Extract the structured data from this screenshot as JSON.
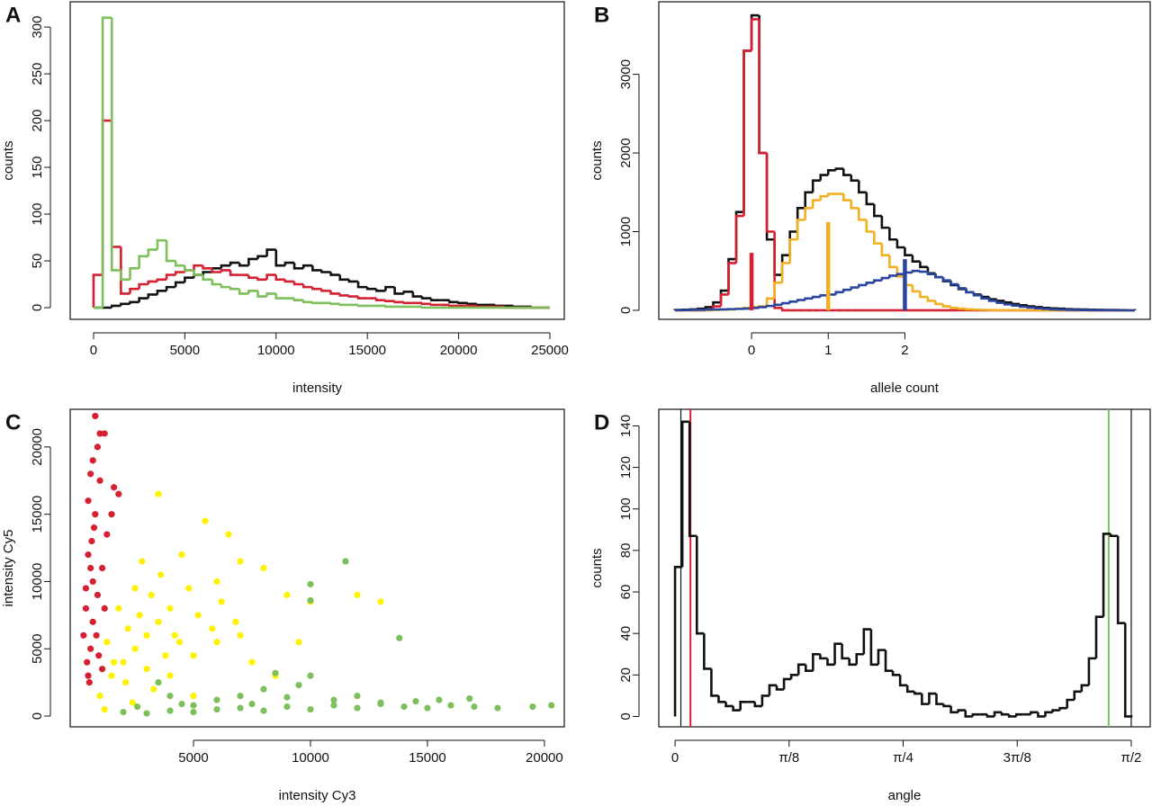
{
  "chart_data": [
    {
      "type": "histogram",
      "panel": "A",
      "xlabel": "intensity",
      "ylabel": "counts",
      "xlim": [
        -1280,
        25790
      ],
      "ylim": [
        -12.5,
        327
      ],
      "xticks": [
        0,
        5000,
        10000,
        15000,
        20000,
        25000
      ],
      "yticks": [
        0,
        50,
        100,
        150,
        200,
        250,
        300
      ],
      "bins": [
        0,
        500,
        1000,
        1500,
        2000,
        2500,
        3000,
        3500,
        4000,
        4500,
        5000,
        5500,
        6000,
        6500,
        7000,
        7500,
        8000,
        8500,
        9000,
        9500,
        10000,
        10500,
        11000,
        11500,
        12000,
        12500,
        13000,
        13500,
        14000,
        14500,
        15000,
        15500,
        16000,
        16500,
        17000,
        17500,
        18000,
        18500,
        19000,
        19500,
        20000,
        20500,
        21000,
        21500,
        22000,
        22500,
        23000,
        23500,
        24000,
        24500,
        25000
      ],
      "series": [
        {
          "color": "#111111",
          "values": [
            0,
            0,
            2,
            4,
            6,
            10,
            14,
            18,
            22,
            27,
            32,
            35,
            38,
            42,
            45,
            48,
            45,
            52,
            55,
            62,
            45,
            48,
            42,
            45,
            40,
            38,
            35,
            30,
            28,
            22,
            20,
            18,
            22,
            15,
            17,
            12,
            10,
            8,
            8,
            6,
            5,
            4,
            3,
            3,
            2,
            2,
            1,
            1,
            0,
            0
          ]
        },
        {
          "color": "#d42030",
          "values": [
            35,
            200,
            65,
            15,
            20,
            25,
            28,
            30,
            35,
            38,
            40,
            45,
            42,
            38,
            40,
            35,
            35,
            32,
            30,
            35,
            30,
            28,
            25,
            22,
            20,
            18,
            15,
            13,
            12,
            10,
            10,
            8,
            7,
            6,
            5,
            5,
            4,
            3,
            3,
            2,
            2,
            2,
            1,
            1,
            1,
            0,
            0,
            0,
            0,
            0
          ]
        },
        {
          "color": "#7dbf5a",
          "values": [
            0,
            310,
            40,
            30,
            42,
            55,
            62,
            72,
            50,
            45,
            40,
            35,
            30,
            25,
            22,
            20,
            15,
            18,
            12,
            15,
            10,
            10,
            8,
            6,
            5,
            5,
            4,
            3,
            3,
            2,
            2,
            2,
            1,
            1,
            1,
            1,
            0,
            0,
            0,
            0,
            0,
            0,
            0,
            0,
            0,
            0,
            0,
            0,
            0,
            0
          ]
        }
      ]
    },
    {
      "type": "histogram",
      "panel": "B",
      "xlabel": "allele count",
      "ylabel": "counts",
      "xlim": [
        -1.21,
        5.2
      ],
      "ylim": [
        -115,
        3922
      ],
      "xticks": [
        0,
        1,
        2
      ],
      "yticks": [
        0,
        1000,
        2000,
        3000
      ],
      "bins": [
        -1.0,
        -0.9,
        -0.8,
        -0.7,
        -0.6,
        -0.5,
        -0.4,
        -0.3,
        -0.2,
        -0.1,
        0.0,
        0.1,
        0.2,
        0.3,
        0.4,
        0.5,
        0.6,
        0.7,
        0.8,
        0.9,
        1.0,
        1.1,
        1.2,
        1.3,
        1.4,
        1.5,
        1.6,
        1.7,
        1.8,
        1.9,
        2.0,
        2.1,
        2.2,
        2.3,
        2.4,
        2.5,
        2.6,
        2.7,
        2.8,
        2.9,
        3.0,
        3.1,
        3.2,
        3.3,
        3.4,
        3.5,
        3.6,
        3.7,
        3.8,
        3.9,
        4.0,
        4.1,
        4.2,
        4.3,
        4.4,
        4.5,
        4.6,
        4.7,
        4.8,
        4.9,
        5.0
      ],
      "series": [
        {
          "color": "#111111",
          "values": [
            5,
            8,
            12,
            20,
            40,
            100,
            250,
            650,
            1250,
            3300,
            3750,
            2000,
            900,
            450,
            700,
            1000,
            1300,
            1500,
            1650,
            1720,
            1780,
            1800,
            1720,
            1650,
            1500,
            1350,
            1200,
            1050,
            900,
            800,
            700,
            620,
            550,
            470,
            420,
            370,
            320,
            270,
            230,
            200,
            170,
            140,
            120,
            100,
            80,
            65,
            50,
            40,
            30,
            25,
            20,
            15,
            12,
            10,
            8,
            6,
            5,
            4,
            3,
            2
          ]
        },
        {
          "color": "#d42030",
          "values": [
            0,
            0,
            0,
            0,
            5,
            50,
            200,
            600,
            1200,
            3300,
            3700,
            2000,
            1000,
            30,
            0,
            0,
            0,
            0,
            0,
            0,
            0,
            0,
            0,
            0,
            0,
            0,
            0,
            0,
            0,
            0,
            0,
            0,
            0,
            0,
            0,
            0,
            0,
            0,
            0,
            0,
            0,
            0,
            0,
            0,
            0,
            0,
            0,
            0,
            0,
            0,
            0,
            0,
            0,
            0,
            0,
            0,
            0,
            0,
            0,
            0
          ]
        },
        {
          "color": "#f0b020",
          "values": [
            0,
            0,
            0,
            0,
            2,
            5,
            8,
            12,
            20,
            30,
            40,
            50,
            150,
            350,
            600,
            900,
            1150,
            1300,
            1400,
            1450,
            1480,
            1480,
            1400,
            1300,
            1150,
            1000,
            850,
            700,
            550,
            430,
            320,
            240,
            170,
            120,
            80,
            50,
            30,
            20,
            12,
            8,
            5,
            3,
            2,
            1,
            1,
            0,
            0,
            0,
            0,
            0,
            0,
            0,
            0,
            0,
            0,
            0,
            0,
            0,
            0,
            0
          ]
        },
        {
          "color": "#2a45a0",
          "values": [
            2,
            3,
            4,
            6,
            8,
            10,
            12,
            15,
            18,
            22,
            30,
            40,
            55,
            70,
            90,
            110,
            130,
            150,
            170,
            190,
            200,
            230,
            260,
            290,
            320,
            350,
            380,
            410,
            440,
            460,
            480,
            500,
            490,
            460,
            420,
            380,
            330,
            280,
            230,
            190,
            150,
            120,
            95,
            75,
            60,
            45,
            35,
            25,
            18,
            12,
            8,
            6,
            4,
            3,
            2,
            1,
            1,
            0,
            0,
            0
          ]
        }
      ],
      "markers": {
        "x": [
          0,
          1,
          2
        ],
        "values": [
          730,
          1120,
          650
        ],
        "colors": [
          "#d42030",
          "#f0b020",
          "#2a45a0"
        ]
      }
    },
    {
      "type": "scatter",
      "panel": "C",
      "xlabel": "intensity Cy3",
      "ylabel": "intensity Cy5",
      "xlim": [
        -270,
        20850
      ],
      "ylim": [
        -800,
        22800
      ],
      "xticks": [
        5000,
        10000,
        15000,
        20000
      ],
      "yticks": [
        0,
        5000,
        10000,
        15000,
        20000
      ],
      "series": [
        {
          "color": "#d42030",
          "x": [
            500,
            600,
            400,
            700,
            500,
            800,
            600,
            900,
            800,
            1000,
            1200,
            1600,
            1800,
            300,
            450,
            550,
            700,
            900,
            1100,
            650,
            750,
            500,
            1000,
            1300,
            400,
            850,
            950,
            1200,
            600,
            1500,
            1100,
            700
          ],
          "y": [
            3000,
            5000,
            8000,
            10000,
            12000,
            15000,
            18000,
            20000,
            22300,
            21000,
            21000,
            17000,
            16500,
            6000,
            4000,
            2500,
            7000,
            9000,
            11000,
            13000,
            14000,
            16000,
            17500,
            13500,
            9500,
            6000,
            4500,
            8000,
            11000,
            15000,
            3500,
            19000
          ]
        },
        {
          "color": "#fff200",
          "x": [
            1000,
            1500,
            2000,
            2500,
            3000,
            3500,
            4000,
            2200,
            3200,
            4500,
            5500,
            6500,
            3500,
            2800,
            6000,
            7000,
            8000,
            4000,
            5000,
            6000,
            7000,
            9000,
            10000,
            12000,
            13000,
            1800,
            2500,
            4200,
            5200,
            6200,
            3800,
            1300,
            2100,
            3000,
            4800,
            5800,
            7500,
            8500,
            2700,
            3600,
            4400,
            1600,
            6800,
            9500,
            5000,
            3300,
            2400,
            1200
          ],
          "y": [
            1500,
            3000,
            4000,
            5000,
            6000,
            7000,
            8000,
            6500,
            9000,
            12000,
            14500,
            13500,
            16500,
            11500,
            10000,
            11500,
            11000,
            3000,
            4500,
            5500,
            6000,
            9000,
            8500,
            9000,
            8500,
            8000,
            9500,
            6000,
            7500,
            8500,
            4500,
            5500,
            2500,
            3500,
            9500,
            6500,
            4000,
            3000,
            7500,
            10500,
            5500,
            4000,
            7000,
            5500,
            1500,
            2000,
            1000,
            500
          ]
        },
        {
          "color": "#7dbf5a",
          "x": [
            2000,
            3000,
            4000,
            5000,
            6000,
            7000,
            8000,
            9000,
            10000,
            11000,
            12000,
            13000,
            14000,
            15000,
            16000,
            17000,
            18000,
            20300,
            19500,
            16800,
            14500,
            12000,
            10000,
            10000,
            10000,
            9500,
            13800,
            8000,
            7000,
            6000,
            5000,
            4000,
            3500,
            11500,
            8500,
            2600,
            4500,
            7500,
            9000,
            11000,
            13000,
            15500
          ],
          "y": [
            300,
            200,
            400,
            300,
            500,
            600,
            400,
            700,
            500,
            800,
            600,
            900,
            700,
            600,
            800,
            700,
            600,
            800,
            700,
            1300,
            1100,
            1500,
            3000,
            8600,
            9800,
            2300,
            5800,
            2000,
            1500,
            1200,
            800,
            1500,
            2500,
            11500,
            3200,
            700,
            900,
            900,
            1400,
            1200,
            1000,
            1200
          ]
        }
      ]
    },
    {
      "type": "histogram",
      "panel": "D",
      "xlabel": "angle",
      "ylabel": "counts",
      "xlim": [
        -0.056,
        1.636
      ],
      "ylim": [
        -5,
        148
      ],
      "xticks": [
        0,
        {
          "value": 0.3927,
          "label": "π/8"
        },
        {
          "value": 0.7854,
          "label": "π/4"
        },
        {
          "value": 1.1781,
          "label": "3π/8"
        },
        {
          "value": 1.5708,
          "label": "π/2"
        }
      ],
      "yticks": [
        0,
        20,
        40,
        60,
        80,
        100,
        120,
        140
      ],
      "bins": [
        0,
        0.025,
        0.05,
        0.075,
        0.1,
        0.125,
        0.15,
        0.175,
        0.2,
        0.225,
        0.25,
        0.275,
        0.3,
        0.325,
        0.35,
        0.375,
        0.4,
        0.425,
        0.45,
        0.475,
        0.5,
        0.525,
        0.55,
        0.575,
        0.6,
        0.625,
        0.65,
        0.675,
        0.7,
        0.725,
        0.75,
        0.775,
        0.8,
        0.825,
        0.85,
        0.875,
        0.9,
        0.925,
        0.95,
        0.975,
        1.0,
        1.025,
        1.05,
        1.075,
        1.1,
        1.125,
        1.15,
        1.175,
        1.2,
        1.225,
        1.25,
        1.275,
        1.3,
        1.325,
        1.35,
        1.375,
        1.4,
        1.425,
        1.45,
        1.475,
        1.5,
        1.525,
        1.55,
        1.575
      ],
      "series": [
        {
          "color": "#111111",
          "values": [
            72,
            142,
            87,
            40,
            23,
            10,
            7,
            5,
            3,
            7,
            7,
            5,
            10,
            15,
            13,
            18,
            20,
            25,
            22,
            30,
            28,
            25,
            35,
            28,
            25,
            30,
            42,
            25,
            32,
            22,
            20,
            15,
            12,
            11,
            6,
            11,
            6,
            5,
            2,
            3,
            0,
            1,
            1,
            0,
            2,
            1,
            0,
            1,
            1,
            2,
            0,
            2,
            3,
            4,
            8,
            12,
            15,
            28,
            48,
            88,
            87,
            45,
            0
          ]
        }
      ],
      "vlines": {
        "x": [
          0.02,
          0.053,
          1.493,
          1.5708
        ],
        "colors": [
          "#111111",
          "#d42030",
          "#7dbf5a",
          "#111111"
        ]
      }
    }
  ]
}
